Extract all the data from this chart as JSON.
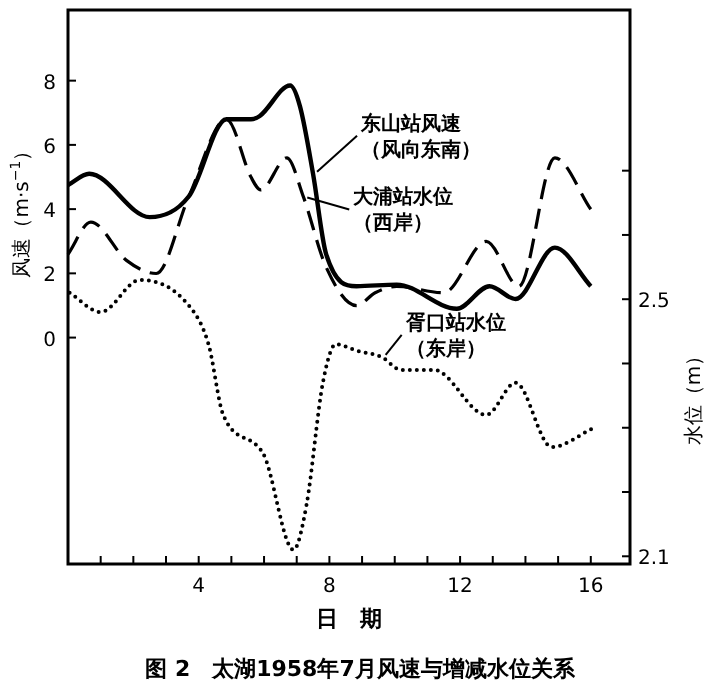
{
  "chart_data": {
    "type": "line",
    "title": "图 2　太湖1958年7月风速与增减水位关系",
    "xlabel": "日　期",
    "ylabel": "风速（m·s$^{−1}$）",
    "y2label": "水位（m）",
    "xlim": [
      0,
      17.2
    ],
    "xticks": [
      {
        "value": 1,
        "label": null
      },
      {
        "value": 2,
        "label": null
      },
      {
        "value": 3,
        "label": null
      },
      4,
      {
        "value": 5,
        "label": null
      },
      {
        "value": 6,
        "label": null
      },
      {
        "value": 7,
        "label": null
      },
      8,
      {
        "value": 9,
        "label": null
      },
      {
        "value": 10,
        "label": null
      },
      {
        "value": 11,
        "label": null
      },
      12,
      {
        "value": 13,
        "label": null
      },
      {
        "value": 14,
        "label": null
      },
      {
        "value": 15,
        "label": null
      },
      16
    ],
    "ylim": [
      -7.05,
      10.2
    ],
    "yticks": [
      0,
      2,
      4,
      6,
      8
    ],
    "y2lim": [
      2.088,
      2.95
    ],
    "y2ticks": [
      2.1,
      {
        "value": 2.2,
        "label": null
      },
      {
        "value": 2.3,
        "label": null
      },
      {
        "value": 2.4,
        "label": null
      },
      2.5,
      {
        "value": 2.6,
        "label": null
      },
      {
        "value": 2.7,
        "label": null
      }
    ],
    "annotations": [
      {
        "text": "东山站风速（风向东南）",
        "x": 7.5,
        "y": 5.1
      },
      {
        "text": "大浦站水位（西岸）",
        "x": 7.2,
        "y": 4.3
      },
      {
        "text": "胥口站水位（东岸）",
        "x": 9.6,
        "y": -0.6
      }
    ],
    "series": [
      {
        "color": "#000000",
        "line_style": "solid",
        "x": [
          0,
          0.65,
          2.5,
          3.7,
          4.85,
          5.6,
          5.87,
          6.8,
          7.1,
          7.5,
          7.9,
          8.83,
          10.06,
          11.9,
          12.9,
          13.7,
          14.9,
          16.0
        ],
        "values": [
          4.75,
          5.1,
          3.75,
          4.4,
          6.8,
          6.8,
          6.9,
          7.85,
          7.2,
          5.1,
          2.6,
          1.6,
          1.65,
          0.9,
          1.6,
          1.2,
          2.8,
          1.6
        ]
      },
      {
        "color": "#000000",
        "line_style": "dashed",
        "axis": "y2",
        "x": [
          0,
          0.7,
          1.8,
          2.7,
          3.7,
          4.85,
          5.6,
          5.9,
          6.7,
          7.2,
          7.9,
          8.83,
          9.4,
          10.06,
          11.5,
          12.8,
          13.8,
          14.9,
          16.0
        ],
        "values": [
          2.57,
          2.62,
          2.56,
          2.54,
          2.66,
          2.78,
          2.69,
          2.67,
          2.72,
          2.66,
          2.55,
          2.49,
          2.51,
          2.52,
          2.51,
          2.59,
          2.52,
          2.72,
          2.64
        ]
      },
      {
        "color": "#000000",
        "line_style": "dotted",
        "axis": "y2",
        "x": [
          0.05,
          1.0,
          2.2,
          3.7,
          4.3,
          4.75,
          5.97,
          6.9,
          7.3,
          7.8,
          8.2,
          8.83,
          9.6,
          10.2,
          11.2,
          12.8,
          13.7,
          14.8,
          16.1
        ],
        "values": [
          2.51,
          2.48,
          2.53,
          2.49,
          2.43,
          2.32,
          2.26,
          2.11,
          2.18,
          2.37,
          2.43,
          2.42,
          2.41,
          2.39,
          2.39,
          2.32,
          2.37,
          2.27,
          2.3
        ]
      }
    ]
  }
}
